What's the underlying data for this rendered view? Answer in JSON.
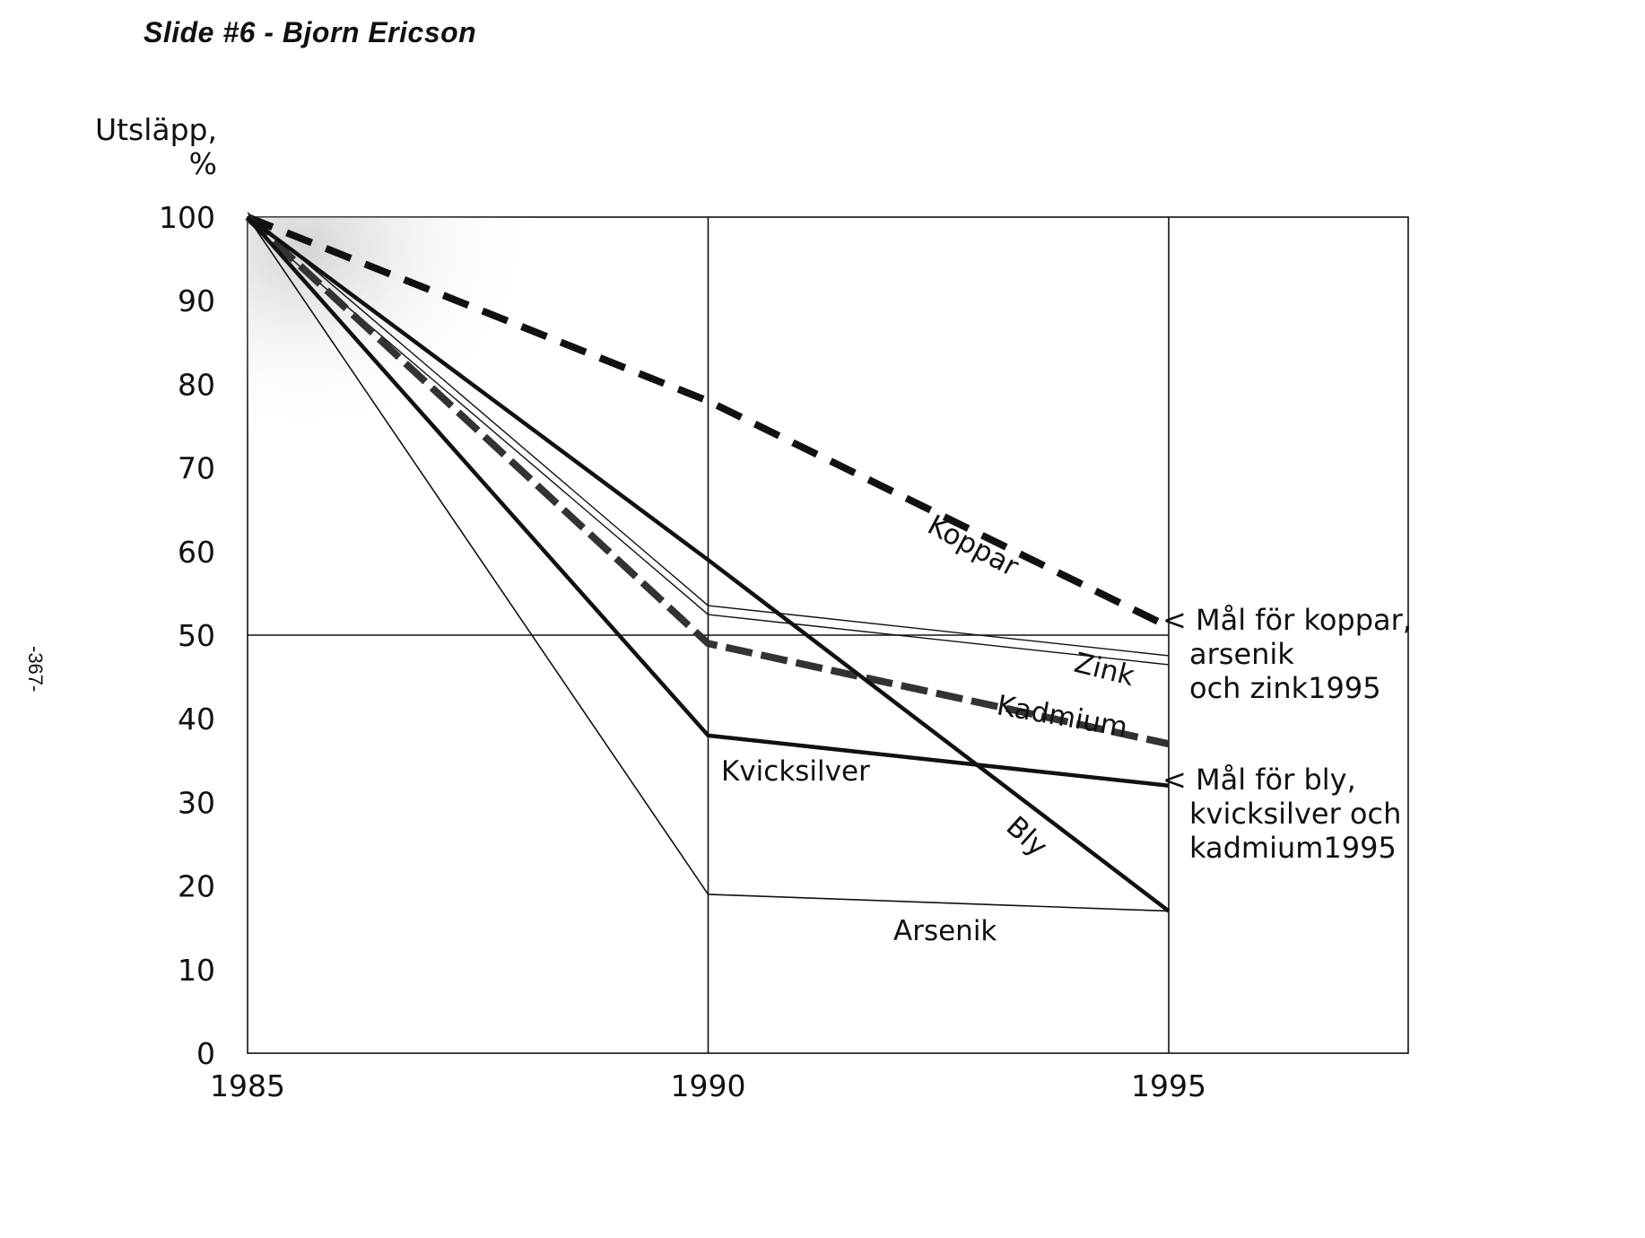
{
  "header": {
    "title": "Slide #6 - Bjorn Ericson",
    "page_number": "-367-"
  },
  "chart_data": {
    "type": "line",
    "title": "",
    "ylabel": [
      "Utsläpp,",
      "%"
    ],
    "xlabel": "",
    "x": [
      1985,
      1990,
      1995
    ],
    "xticks": [
      "1985",
      "1990",
      "1995"
    ],
    "yticks": [
      "0",
      "10",
      "20",
      "30",
      "40",
      "50",
      "60",
      "70",
      "80",
      "90",
      "100"
    ],
    "xlim": [
      1985,
      1997.6
    ],
    "ylim": [
      0,
      100
    ],
    "grid": true,
    "series": [
      {
        "name": "Koppar",
        "values": [
          100,
          78,
          51
        ],
        "style": "dashed-thick"
      },
      {
        "name": "Zink",
        "values": [
          100,
          53,
          47
        ],
        "style": "thin-double"
      },
      {
        "name": "Kadmium",
        "values": [
          100,
          49,
          37
        ],
        "style": "dashed-thick-gray"
      },
      {
        "name": "Kvicksilver",
        "values": [
          100,
          38,
          32
        ],
        "style": "solid-thick"
      },
      {
        "name": "Bly",
        "values": [
          100,
          59,
          17
        ],
        "style": "solid-thick"
      },
      {
        "name": "Arsenik",
        "values": [
          100,
          19,
          17
        ],
        "style": "thin"
      }
    ],
    "target_line": 50,
    "annotations": [
      {
        "lines": [
          "< Mål för koppar,",
          "arsenik",
          "och zink1995"
        ],
        "y": 51
      },
      {
        "lines": [
          "< Mål för bly,",
          "kvicksilver och",
          "kadmium1995"
        ],
        "y": 32
      }
    ],
    "colors": {
      "line": "#111111",
      "dash_gray": "#333333"
    }
  }
}
